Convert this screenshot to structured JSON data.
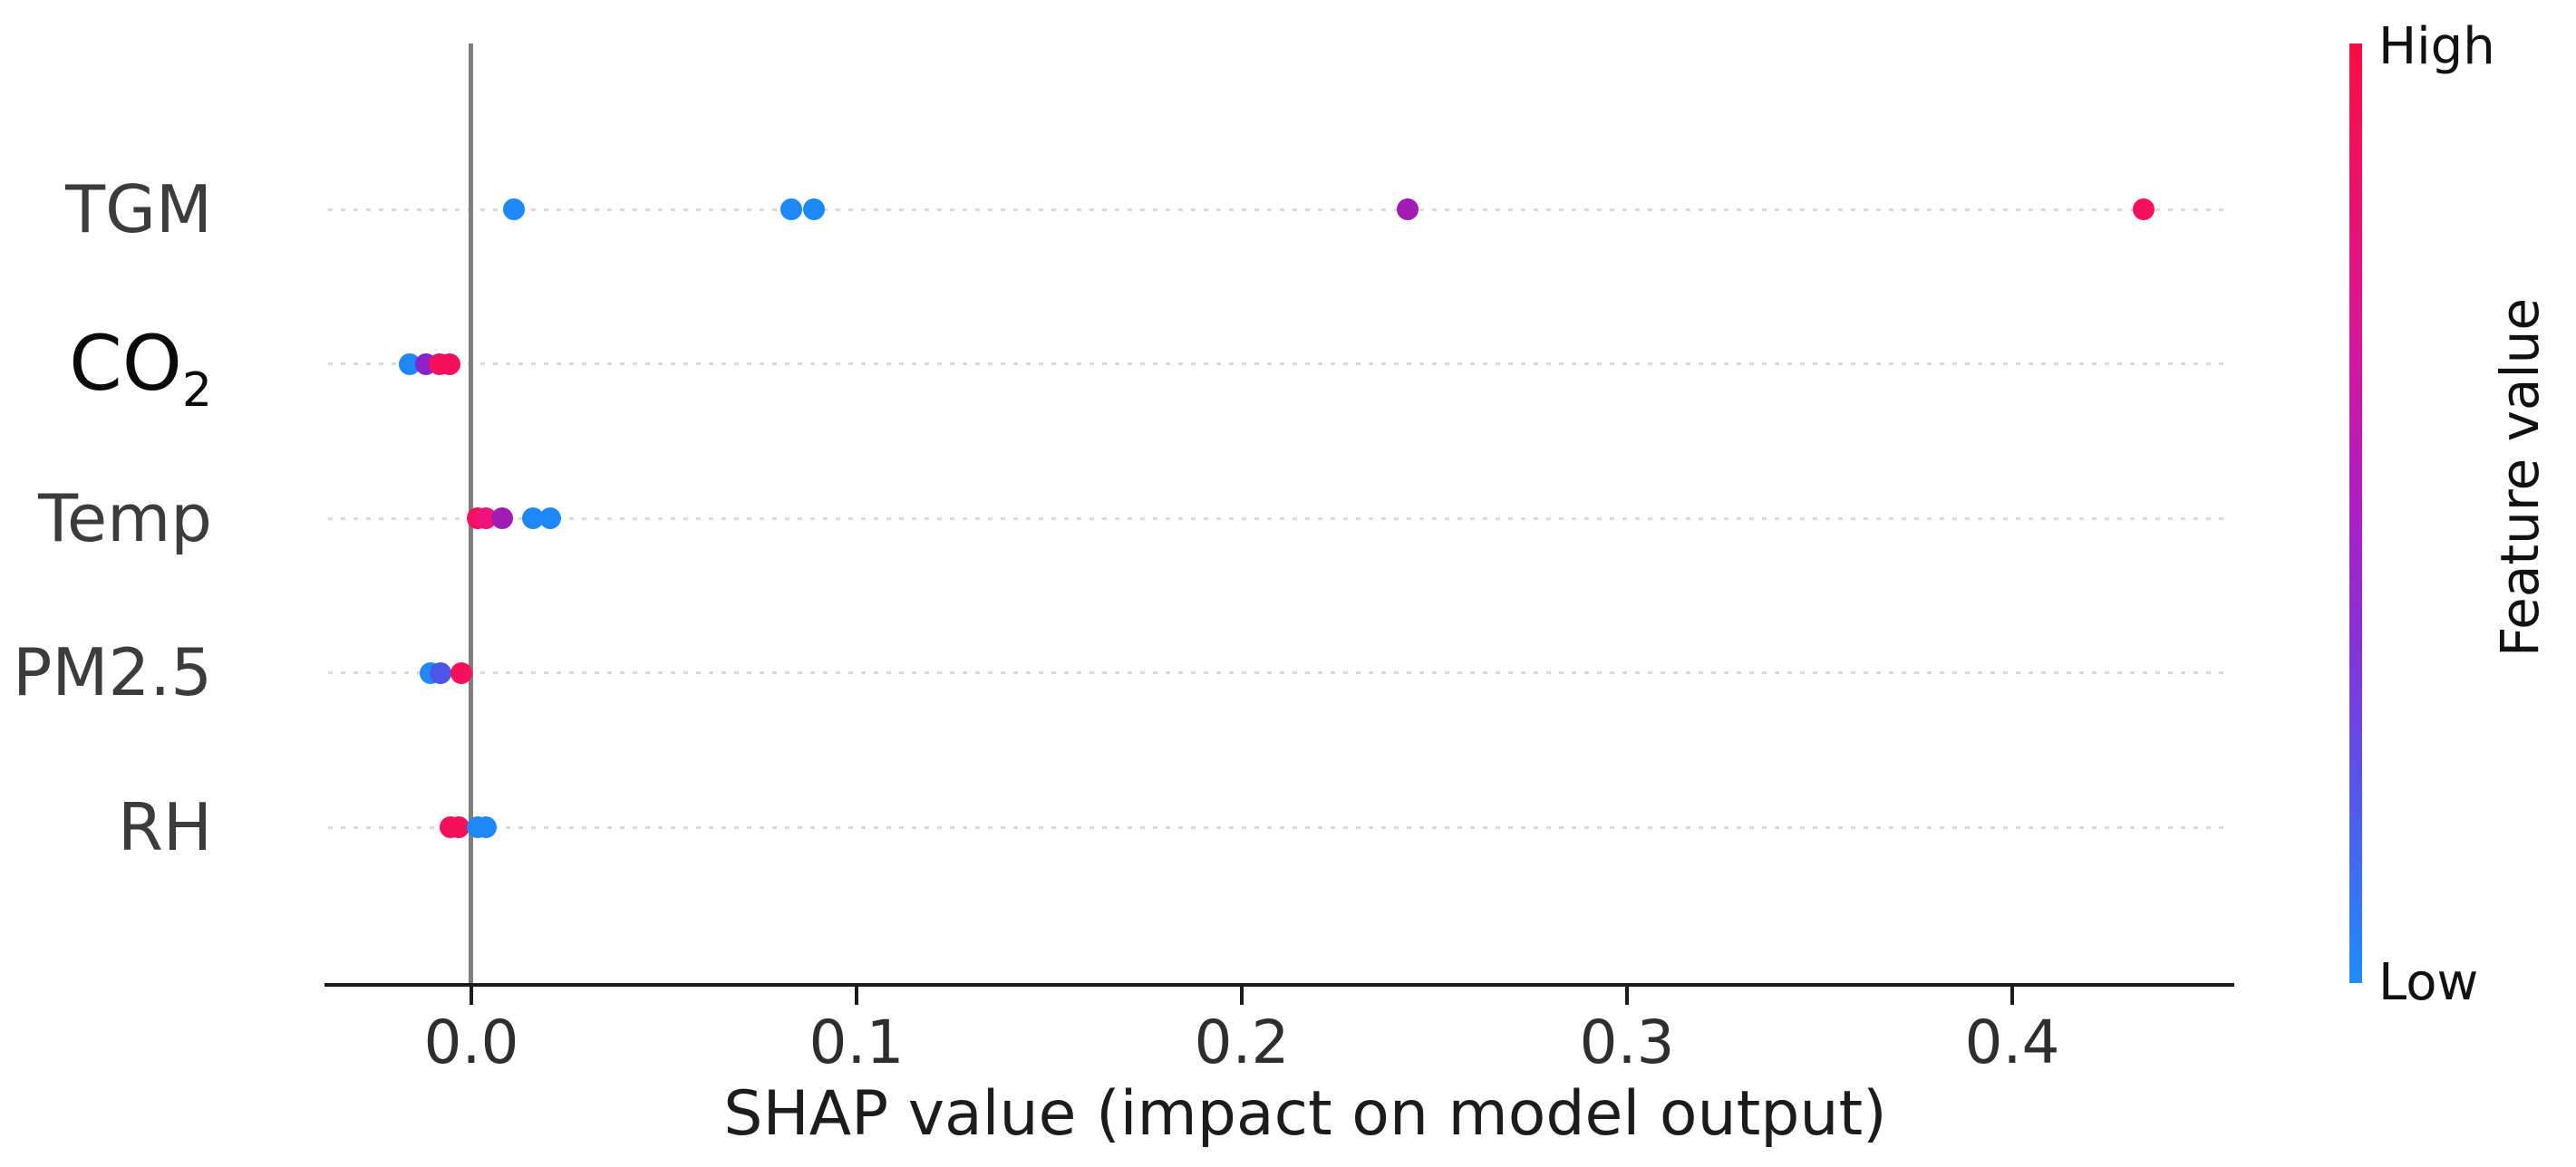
{
  "chart_data": {
    "type": "scatter",
    "subtype": "shap-summary-beeswarm",
    "title": "",
    "xlabel": "SHAP value (impact on model output)",
    "ylabel": "",
    "x_ticks": [
      0.0,
      0.1,
      0.2,
      0.3,
      0.4
    ],
    "x_tick_labels": [
      "0.0",
      "0.1",
      "0.2",
      "0.3",
      "0.4"
    ],
    "xlim": [
      -0.04,
      0.46
    ],
    "grid": "dotted horizontal line per feature row",
    "legend_position": "right colorbar",
    "features": [
      {
        "label": "TGM",
        "sub": "",
        "points": [
          {
            "x": 0.011,
            "color": "#1e88f7"
          },
          {
            "x": 0.083,
            "color": "#1e88f7"
          },
          {
            "x": 0.089,
            "color": "#1e88f7"
          },
          {
            "x": 0.243,
            "color": "#a01cb2"
          },
          {
            "x": 0.434,
            "color": "#f5105c"
          }
        ]
      },
      {
        "label": "CO",
        "sub": "2",
        "points": [
          {
            "x": -0.016,
            "color": "#1e88f7"
          },
          {
            "x": -0.0118,
            "color": "#8b21c8"
          },
          {
            "x": -0.0082,
            "color": "#f5105c"
          },
          {
            "x": -0.0056,
            "color": "#f5105c"
          }
        ]
      },
      {
        "label": "Temp",
        "sub": "",
        "points": [
          {
            "x": 0.0016,
            "color": "#f5105c"
          },
          {
            "x": 0.0038,
            "color": "#ee1279"
          },
          {
            "x": 0.008,
            "color": "#a01cb2"
          },
          {
            "x": 0.016,
            "color": "#1e88f7"
          },
          {
            "x": 0.0205,
            "color": "#1e88f7"
          }
        ]
      },
      {
        "label": "PM2.5",
        "sub": "",
        "points": [
          {
            "x": -0.0105,
            "color": "#1e88f7"
          },
          {
            "x": -0.008,
            "color": "#4d55e6"
          },
          {
            "x": -0.0025,
            "color": "#f5105c"
          }
        ]
      },
      {
        "label": "RH",
        "sub": "",
        "points": [
          {
            "x": -0.0054,
            "color": "#f5105c"
          },
          {
            "x": -0.0033,
            "color": "#f5105c"
          },
          {
            "x": 0.0016,
            "color": "#1e88f7"
          },
          {
            "x": 0.0038,
            "color": "#1e88f7"
          }
        ]
      }
    ],
    "colorbar": {
      "label": "Feature value",
      "high": "High",
      "low": "Low",
      "high_color": "#f70d43",
      "mid_color": "#b01ec0",
      "low_color": "#1e8cff"
    }
  }
}
